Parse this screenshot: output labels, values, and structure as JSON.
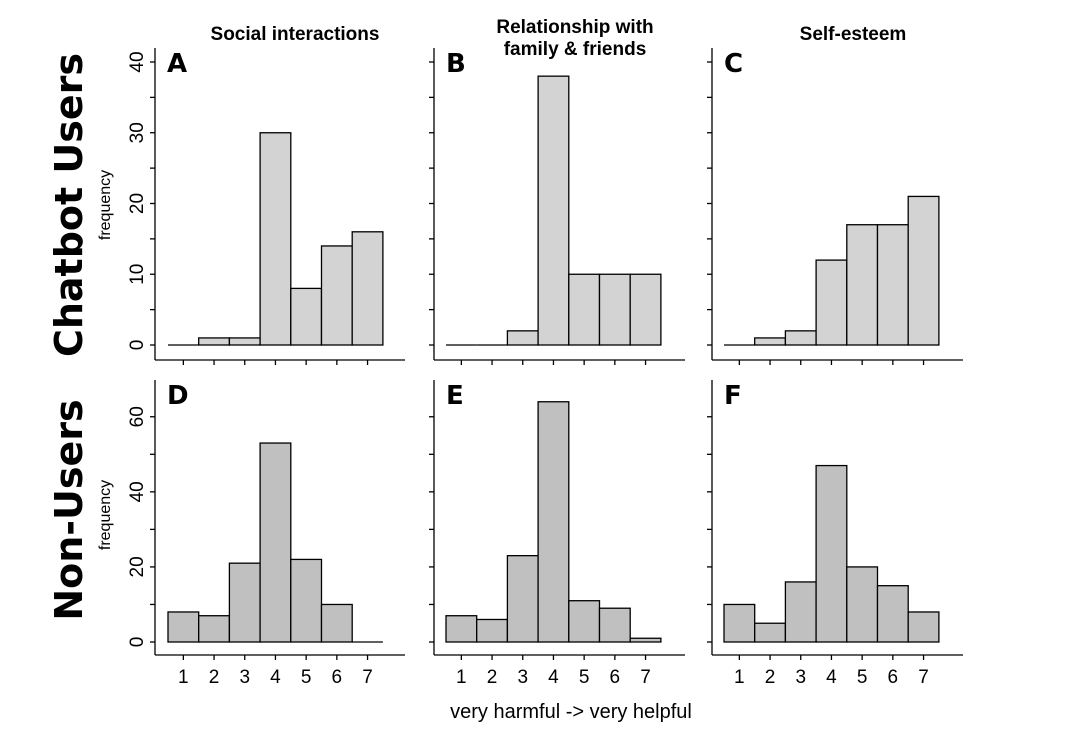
{
  "column_titles": [
    "Social interactions",
    "Relationship with",
    "family & friends",
    "Self-esteem"
  ],
  "row_titles": [
    "Chatbot Users",
    "Non-Users"
  ],
  "y_axis_label": "frequency",
  "x_axis_label": "very harmful -> very helpful",
  "colors": {
    "chatbot_bar_fill": "#d3d3d3",
    "nonuser_bar_fill": "#c0c0c0",
    "stroke": "#000000"
  },
  "chart_data": [
    {
      "type": "bar",
      "panel": "A",
      "title": "Social interactions",
      "group": "Chatbot Users",
      "categories": [
        1,
        2,
        3,
        4,
        5,
        6,
        7
      ],
      "values": [
        0,
        1,
        1,
        30,
        8,
        14,
        16
      ],
      "ylabel": "frequency",
      "ylim": [
        0,
        40
      ],
      "yticks": [
        0,
        10,
        20,
        30,
        40
      ],
      "xticks": [],
      "grid": false
    },
    {
      "type": "bar",
      "panel": "B",
      "title": "Relationship with family & friends",
      "group": "Chatbot Users",
      "categories": [
        1,
        2,
        3,
        4,
        5,
        6,
        7
      ],
      "values": [
        0,
        0,
        2,
        38,
        10,
        10,
        10
      ],
      "ylabel": "frequency",
      "ylim": [
        0,
        40
      ],
      "yticks": [],
      "xticks": [],
      "grid": false
    },
    {
      "type": "bar",
      "panel": "C",
      "title": "Self-esteem",
      "group": "Chatbot Users",
      "categories": [
        1,
        2,
        3,
        4,
        5,
        6,
        7
      ],
      "values": [
        0,
        1,
        2,
        12,
        17,
        17,
        21
      ],
      "ylabel": "frequency",
      "ylim": [
        0,
        40
      ],
      "yticks": [],
      "xticks": [],
      "grid": false
    },
    {
      "type": "bar",
      "panel": "D",
      "title": "Social interactions",
      "group": "Non-Users",
      "categories": [
        1,
        2,
        3,
        4,
        5,
        6,
        7
      ],
      "values": [
        8,
        7,
        21,
        53,
        22,
        10,
        0
      ],
      "ylabel": "frequency",
      "ylim": [
        0,
        65
      ],
      "yticks": [
        0,
        20,
        40,
        60
      ],
      "xticks": [
        1,
        2,
        3,
        4,
        5,
        6,
        7
      ],
      "grid": false
    },
    {
      "type": "bar",
      "panel": "E",
      "title": "Relationship with family & friends",
      "group": "Non-Users",
      "categories": [
        1,
        2,
        3,
        4,
        5,
        6,
        7
      ],
      "values": [
        7,
        6,
        23,
        64,
        11,
        9,
        1
      ],
      "ylabel": "frequency",
      "ylim": [
        0,
        65
      ],
      "yticks": [],
      "xticks": [
        1,
        2,
        3,
        4,
        5,
        6,
        7
      ],
      "grid": false
    },
    {
      "type": "bar",
      "panel": "F",
      "title": "Self-esteem",
      "group": "Non-Users",
      "categories": [
        1,
        2,
        3,
        4,
        5,
        6,
        7
      ],
      "values": [
        10,
        5,
        16,
        47,
        20,
        15,
        8
      ],
      "ylabel": "frequency",
      "ylim": [
        0,
        65
      ],
      "yticks": [],
      "xticks": [
        1,
        2,
        3,
        4,
        5,
        6,
        7
      ],
      "grid": false
    }
  ]
}
